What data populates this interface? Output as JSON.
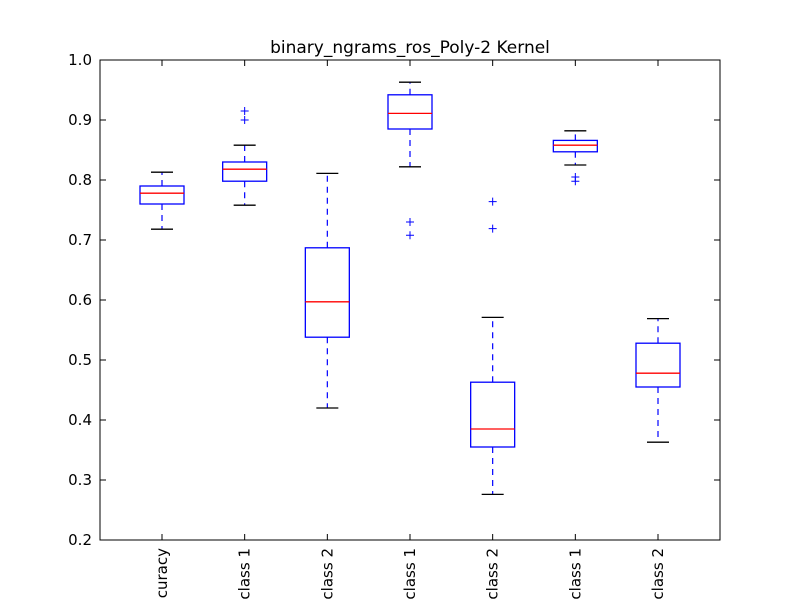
{
  "chart_data": {
    "type": "boxplot",
    "title": "binary_ngrams_ros_Poly-2 Kernel",
    "xlabel": "",
    "ylabel": "",
    "ylim": [
      0.2,
      1.0
    ],
    "yticks": [
      "0.2",
      "0.3",
      "0.4",
      "0.5",
      "0.6",
      "0.7",
      "0.8",
      "0.9",
      "1.0"
    ],
    "grid": false,
    "categories": [
      "curacy",
      "class 1",
      "class 2",
      "class 1",
      "class 2",
      "class 1",
      "class 2"
    ],
    "boxes": [
      {
        "whislo": 0.718,
        "q1": 0.76,
        "med": 0.778,
        "q3": 0.79,
        "whishi": 0.813,
        "fliers": []
      },
      {
        "whislo": 0.758,
        "q1": 0.798,
        "med": 0.818,
        "q3": 0.83,
        "whishi": 0.858,
        "fliers": [
          0.9,
          0.915
        ]
      },
      {
        "whislo": 0.42,
        "q1": 0.538,
        "med": 0.597,
        "q3": 0.687,
        "whishi": 0.811,
        "fliers": []
      },
      {
        "whislo": 0.822,
        "q1": 0.885,
        "med": 0.911,
        "q3": 0.942,
        "whishi": 0.963,
        "fliers": [
          0.708,
          0.73
        ]
      },
      {
        "whislo": 0.276,
        "q1": 0.355,
        "med": 0.385,
        "q3": 0.463,
        "whishi": 0.571,
        "fliers": [
          0.719,
          0.764
        ]
      },
      {
        "whislo": 0.825,
        "q1": 0.847,
        "med": 0.858,
        "q3": 0.866,
        "whishi": 0.882,
        "fliers": [
          0.798,
          0.805
        ]
      },
      {
        "whislo": 0.363,
        "q1": 0.455,
        "med": 0.478,
        "q3": 0.528,
        "whishi": 0.569,
        "fliers": []
      }
    ],
    "colors": {
      "box": "#0000ff",
      "median": "#ff0000",
      "whisker": "#0000ff",
      "cap": "#000000",
      "flier": "#0000ff",
      "axes": "#000000"
    }
  }
}
